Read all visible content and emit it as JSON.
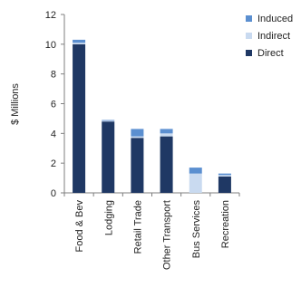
{
  "chart_data": {
    "type": "bar",
    "stacked": true,
    "ylabel": "$ Millions",
    "ylim": [
      0,
      12
    ],
    "yticks": [
      "0",
      "2",
      "4",
      "6",
      "8",
      "10",
      "12"
    ],
    "categories": [
      "Food & Bev",
      "Lodging",
      "Retail Trade",
      "Other Transport",
      "Bus Services",
      "Recreation"
    ],
    "series": [
      {
        "name": "Direct",
        "color": "#1f3864",
        "values": [
          10.0,
          4.8,
          3.7,
          3.8,
          0.0,
          1.1
        ]
      },
      {
        "name": "Indirect",
        "color": "#c9daf0",
        "values": [
          0.1,
          0.05,
          0.1,
          0.2,
          1.3,
          0.1
        ]
      },
      {
        "name": "Induced",
        "color": "#5b8fd0",
        "values": [
          0.2,
          0.05,
          0.5,
          0.3,
          0.4,
          0.1
        ]
      }
    ],
    "legend": {
      "position": "right",
      "order": [
        "Induced",
        "Indirect",
        "Direct"
      ]
    },
    "grid": false
  }
}
